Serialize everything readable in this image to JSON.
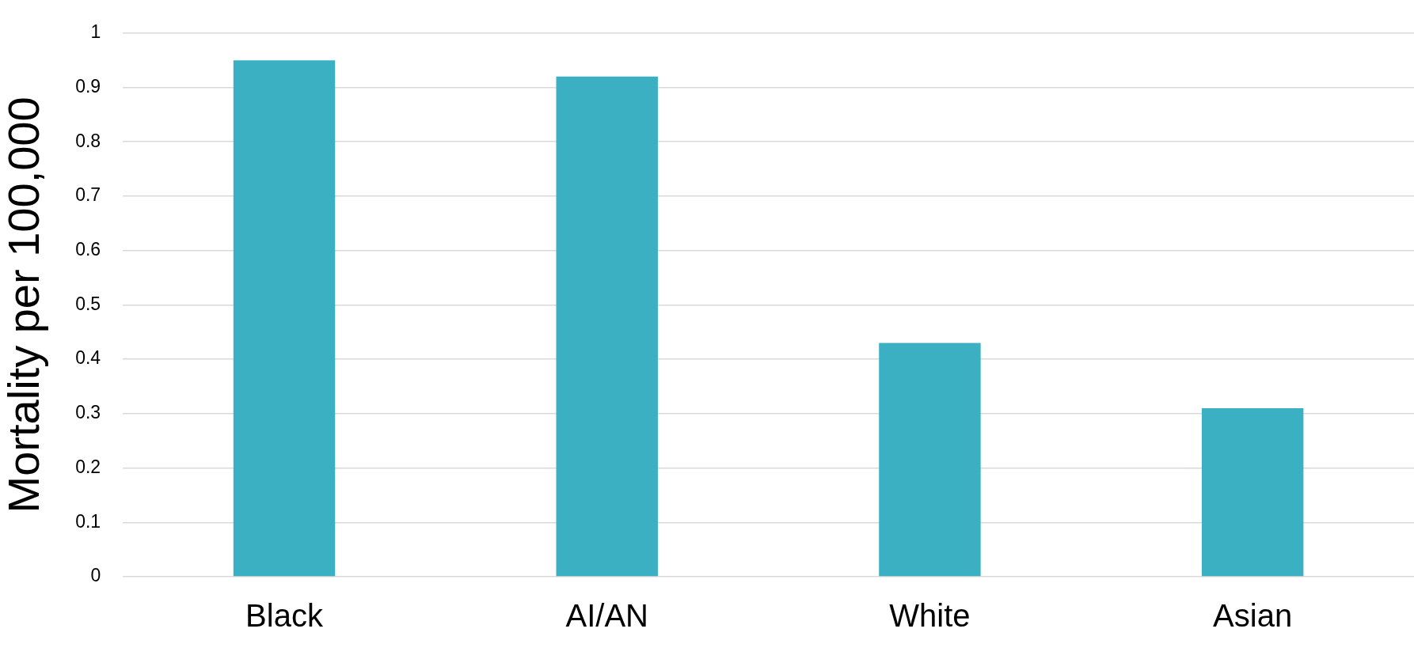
{
  "chart_data": {
    "type": "bar",
    "ylabel": "Mortality per 100,000",
    "categories": [
      "Black",
      "AI/AN",
      "White",
      "Asian"
    ],
    "values": [
      0.95,
      0.92,
      0.43,
      0.31
    ],
    "color": "#3cb0c3",
    "ylim": [
      0,
      1
    ],
    "yticks": [
      0,
      0.1,
      0.2,
      0.3,
      0.4,
      0.5,
      0.6,
      0.7,
      0.8,
      0.9,
      1
    ],
    "grid": "y",
    "legend": false
  }
}
